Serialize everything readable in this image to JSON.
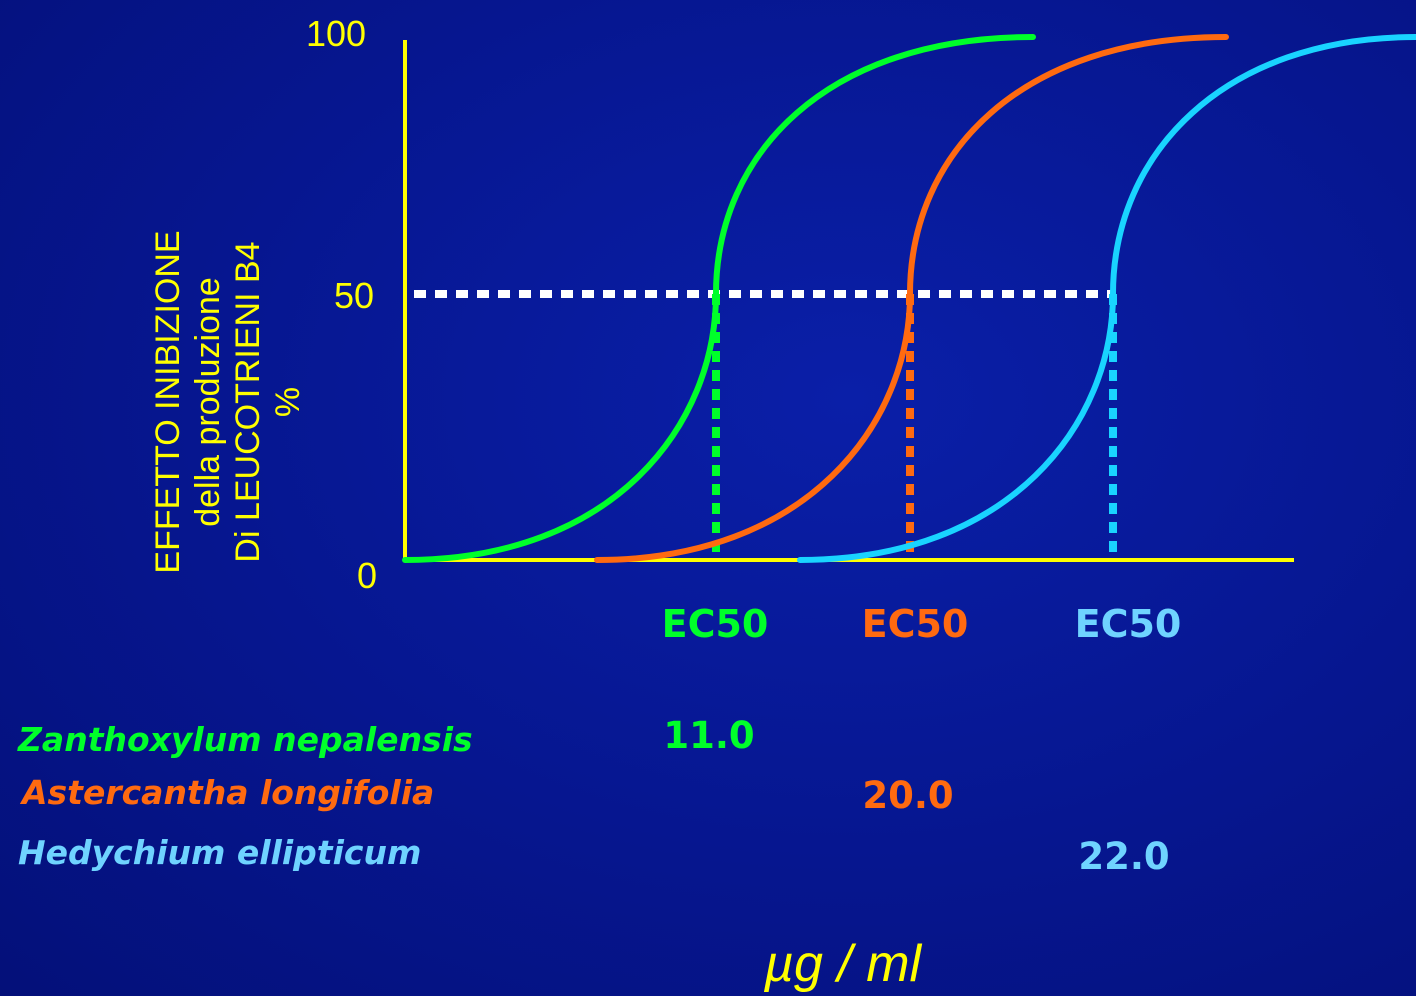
{
  "chart_data": {
    "type": "line",
    "title": "",
    "ylabel_lines": [
      "EFFETTO INIBIZIONE",
      "della produzione",
      "Di LEUCOTRIENI B4",
      "%"
    ],
    "yticks": [
      "0",
      "50",
      "100"
    ],
    "ylim": [
      0,
      100
    ],
    "series": [
      {
        "name": "Zanthoxylum nepalensis",
        "ec50": "11.0",
        "color": "#00ff2a"
      },
      {
        "name": "Astercantha longifolia",
        "ec50": "20.0",
        "color": "#ff6a10"
      },
      {
        "name": "Hedychium ellipticum",
        "ec50": "22.0",
        "color": "#19d4ff"
      }
    ],
    "ec50_label": "EC50",
    "unit": "µg / ml",
    "reference_level": 50,
    "colors": {
      "background": "#06168f",
      "axes": "#ffff00",
      "reference": "#ffffff"
    }
  }
}
